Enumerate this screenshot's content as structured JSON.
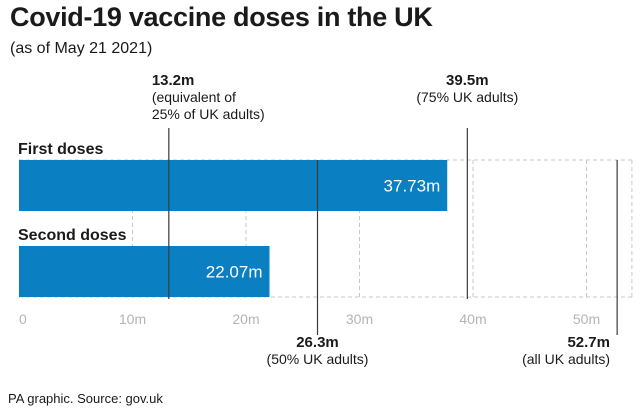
{
  "title": "Covid-19 vaccine doses in the UK",
  "subtitle": "(as of May 21 2021)",
  "source": "PA graphic. Source: gov.uk",
  "colors": {
    "bar": "#0a80c2",
    "text": "#1a1a1a",
    "grid": "#c8c8c8",
    "axis_text": "#b4b4b4",
    "marker": "#3a3a3a"
  },
  "chart_data": {
    "type": "bar",
    "orientation": "horizontal",
    "categories": [
      "First doses",
      "Second doses"
    ],
    "values": [
      37.73,
      22.07
    ],
    "value_labels": [
      "37.73m",
      "22.07m"
    ],
    "xlim": [
      0,
      54
    ],
    "xticks": [
      0,
      10,
      20,
      30,
      40,
      50
    ],
    "xtick_labels": [
      "0",
      "10m",
      "20m",
      "30m",
      "40m",
      "50m"
    ],
    "grid": "dashed vertical",
    "reference_lines": [
      {
        "value": 13.2,
        "position": "top",
        "lines": [
          "13.2m",
          "(equivalent of",
          "25% of UK adults)"
        ]
      },
      {
        "value": 39.5,
        "position": "top",
        "lines": [
          "39.5m",
          "(75% UK adults)"
        ]
      },
      {
        "value": 26.3,
        "position": "bottom",
        "lines": [
          "26.3m",
          "(50% UK adults)"
        ]
      },
      {
        "value": 52.7,
        "position": "bottom",
        "lines": [
          "52.7m",
          "(all UK adults)"
        ]
      }
    ]
  }
}
